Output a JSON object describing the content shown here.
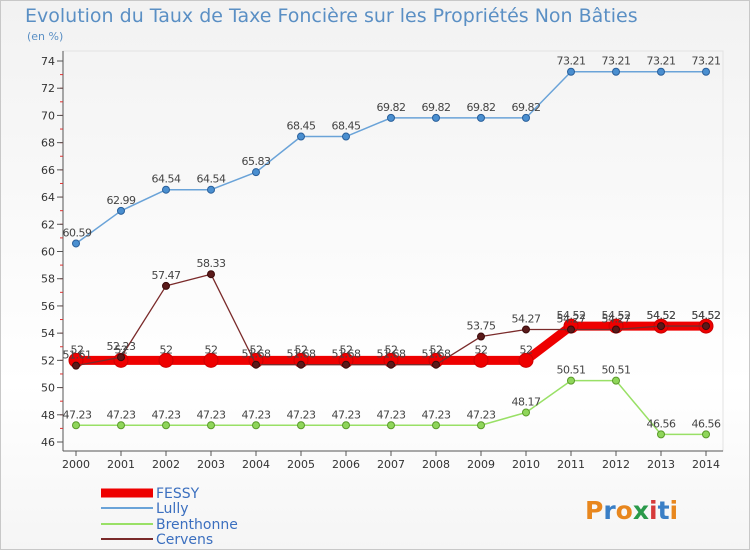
{
  "title": "Evolution du Taux de Taxe Foncière sur les Propriétés Non Bâties",
  "unit": "(en %)",
  "logo": "Proxiti",
  "chart_data": {
    "type": "line",
    "title": "Evolution du Taux de Taxe Foncière sur les Propriétés Non Bâties",
    "ylabel": "(en %)",
    "xlabel": "",
    "categories": [
      "2000",
      "2001",
      "2002",
      "2003",
      "2004",
      "2005",
      "2006",
      "2007",
      "2008",
      "2009",
      "2010",
      "2011",
      "2012",
      "2013",
      "2014"
    ],
    "ylim": [
      46,
      74
    ],
    "yticks": [
      46,
      48,
      50,
      52,
      54,
      56,
      58,
      60,
      62,
      64,
      66,
      68,
      70,
      72,
      74
    ],
    "grid": false,
    "legend_position": "bottom-left",
    "series": [
      {
        "name": "FESSY",
        "color": "#ee0000",
        "values": [
          52,
          52,
          52,
          52,
          52,
          52,
          52,
          52,
          52,
          52,
          52,
          54.52,
          54.52,
          54.52,
          54.52
        ]
      },
      {
        "name": "Lully",
        "color": "#6aa3d8",
        "values": [
          60.59,
          62.99,
          64.54,
          64.54,
          65.83,
          68.45,
          68.45,
          69.82,
          69.82,
          69.82,
          69.82,
          73.21,
          73.21,
          73.21,
          73.21
        ]
      },
      {
        "name": "Brenthonne",
        "color": "#99e066",
        "values": [
          47.23,
          47.23,
          47.23,
          47.23,
          47.23,
          47.23,
          47.23,
          47.23,
          47.23,
          47.23,
          48.17,
          50.51,
          50.51,
          46.56,
          46.56
        ]
      },
      {
        "name": "Cervens",
        "color": "#7a2a2a",
        "values": [
          51.61,
          52.23,
          57.47,
          58.33,
          51.68,
          51.68,
          51.68,
          51.68,
          51.68,
          53.75,
          54.27,
          54.27,
          54.27,
          54.52,
          54.52
        ]
      }
    ]
  }
}
